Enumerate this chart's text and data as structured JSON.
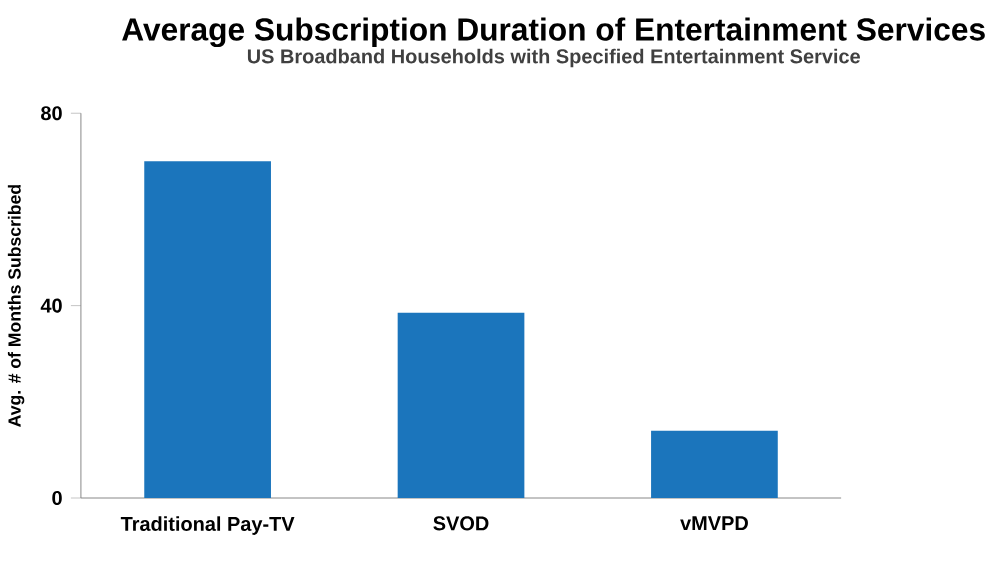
{
  "chart_data": {
    "type": "bar",
    "title": "Average Subscription Duration of Entertainment Services",
    "subtitle": "US Broadband Households with Specified Entertainment Service",
    "ylabel": "Avg. # of Months Subscribed",
    "categories": [
      "Traditional Pay-TV",
      "SVOD",
      "vMVPD"
    ],
    "values": [
      70,
      38.5,
      14
    ],
    "color": "#1b75bc",
    "ylim": [
      0,
      80
    ],
    "yticks": [
      0,
      40,
      80
    ]
  }
}
